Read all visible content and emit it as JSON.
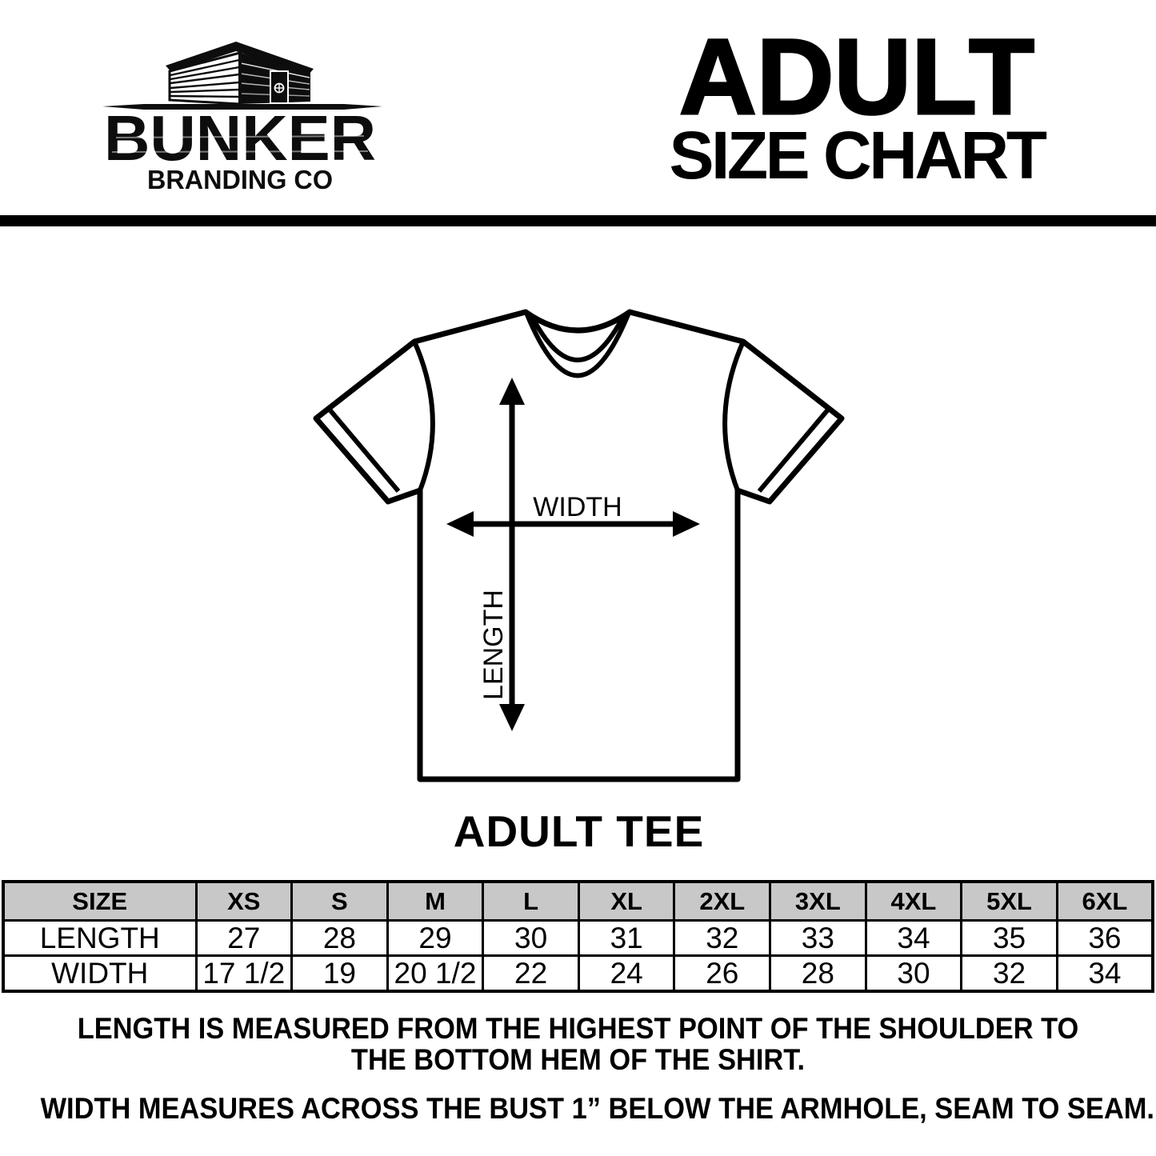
{
  "logo": {
    "brand": "BUNKER",
    "subtitle": "BRANDING CO"
  },
  "header": {
    "title_line1": "ADULT",
    "title_line2": "SIZE CHART"
  },
  "diagram": {
    "width_label": "WIDTH",
    "length_label": "LENGTH",
    "caption": "ADULT TEE"
  },
  "table": {
    "columns": [
      "SIZE",
      "XS",
      "S",
      "M",
      "L",
      "XL",
      "2XL",
      "3XL",
      "4XL",
      "5XL",
      "6XL"
    ],
    "rows": [
      {
        "label": "LENGTH",
        "values": [
          "27",
          "28",
          "29",
          "30",
          "31",
          "32",
          "33",
          "34",
          "35",
          "36"
        ]
      },
      {
        "label": "WIDTH",
        "values": [
          "17 1/2",
          "19",
          "20 1/2",
          "22",
          "24",
          "26",
          "28",
          "30",
          "32",
          "34"
        ]
      }
    ]
  },
  "footer": {
    "note1_line1": "LENGTH IS MEASURED FROM THE HIGHEST POINT OF THE SHOULDER TO",
    "note1_line2": "THE BOTTOM HEM OF THE SHIRT.",
    "note2": "WIDTH MEASURES ACROSS THE BUST 1” BELOW THE ARMHOLE, SEAM TO SEAM."
  },
  "colors": {
    "ink": "#000000",
    "table_header_bg": "#c8c8c8"
  }
}
